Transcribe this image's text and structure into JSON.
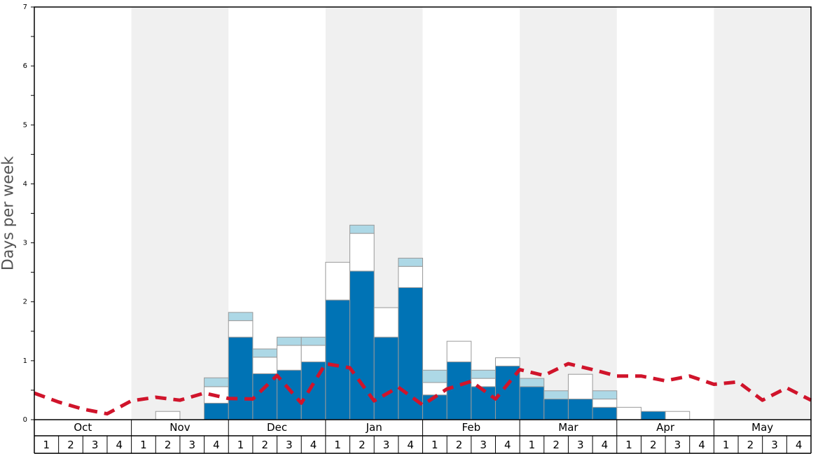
{
  "chart_data": {
    "type": "bar",
    "ylabel": "Days per week",
    "ylim": [
      0,
      7
    ],
    "y_ticks": [
      "0",
      "1",
      "2",
      "3",
      "4",
      "5",
      "6",
      "7"
    ],
    "months": [
      "Oct",
      "Nov",
      "Dec",
      "Jan",
      "Feb",
      "Mar",
      "Apr",
      "May"
    ],
    "weeks": [
      "1",
      "2",
      "3",
      "4"
    ],
    "shaded_months": [
      "Nov",
      "Jan",
      "Mar",
      "May"
    ],
    "stack_values": [
      [
        0,
        0,
        0
      ],
      [
        0,
        0,
        0
      ],
      [
        0,
        0,
        0
      ],
      [
        0,
        0,
        0
      ],
      [
        0,
        0,
        0
      ],
      [
        0,
        0.14,
        0
      ],
      [
        0,
        0,
        0
      ],
      [
        0.28,
        0.28,
        0.15
      ],
      [
        1.4,
        0.28,
        0.14
      ],
      [
        0.78,
        0.28,
        0.14
      ],
      [
        0.84,
        0.42,
        0.14
      ],
      [
        0.98,
        0.28,
        0.14
      ],
      [
        2.03,
        0.64,
        0
      ],
      [
        2.52,
        0.64,
        0.14
      ],
      [
        1.4,
        0.5,
        0
      ],
      [
        2.24,
        0.36,
        0.14
      ],
      [
        0.42,
        0.21,
        0.21
      ],
      [
        0.98,
        0.35,
        0
      ],
      [
        0.56,
        0.14,
        0.14
      ],
      [
        0.91,
        0.14,
        0
      ],
      [
        0.56,
        0,
        0.14
      ],
      [
        0.35,
        0,
        0.14
      ],
      [
        0.35,
        0.42,
        0
      ],
      [
        0.21,
        0.14,
        0.14
      ],
      [
        0,
        0.21,
        0
      ],
      [
        0.14,
        0,
        0
      ],
      [
        0,
        0.14,
        0
      ],
      [
        0,
        0,
        0
      ],
      [
        0,
        0,
        0
      ],
      [
        0,
        0,
        0
      ],
      [
        0,
        0,
        0
      ],
      [
        0,
        0,
        0
      ]
    ],
    "line_values": [
      0.45,
      0.3,
      0.18,
      0.1,
      0.32,
      0.38,
      0.33,
      0.45,
      0.36,
      0.35,
      0.75,
      0.28,
      0.95,
      0.88,
      0.32,
      0.55,
      0.25,
      0.52,
      0.65,
      0.35,
      0.85,
      0.75,
      0.95,
      0.85,
      0.74,
      0.74,
      0.66,
      0.74,
      0.6,
      0.64,
      0.33,
      0.54,
      0.33
    ],
    "colors": {
      "bar_dark": "#0073b5",
      "bar_white": "#ffffff",
      "bar_light": "#add8e6",
      "bar_stroke": "#999999",
      "line": "#d0142b",
      "shade": "#f0f0f0",
      "axis": "#000000"
    }
  }
}
